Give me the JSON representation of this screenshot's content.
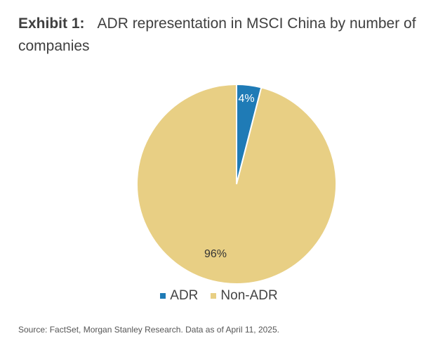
{
  "title": {
    "label": "Exhibit 1:",
    "text": "ADR representation in MSCI China by number of companies"
  },
  "chart_data": {
    "type": "pie",
    "slices": [
      {
        "name": "ADR",
        "value": 4,
        "label": "4%",
        "color": "#1f7bb6"
      },
      {
        "name": "Non-ADR",
        "value": 96,
        "label": "96%",
        "color": "#e8cf84"
      }
    ]
  },
  "legend": {
    "items": [
      {
        "label": "ADR",
        "color": "#1f7bb6"
      },
      {
        "label": "Non-ADR",
        "color": "#e8cf84"
      }
    ]
  },
  "source": "Source: FactSet, Morgan Stanley Research. Data as of April 11, 2025."
}
